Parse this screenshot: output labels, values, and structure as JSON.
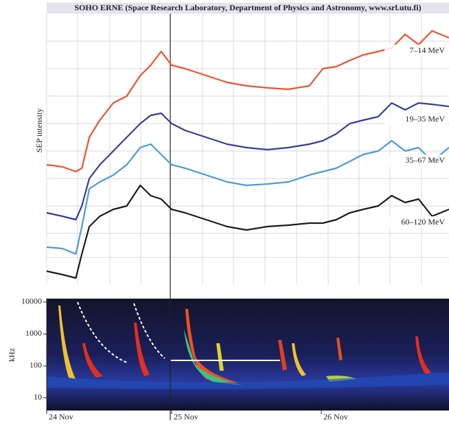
{
  "chart_data": [
    {
      "type": "line",
      "title": "SOHO ERNE (Space Research Laboratory, Department of Physics and Astronomy, www.srl.utu.fi)",
      "ylabel": "SEP intensity",
      "xlim": [
        0.165,
        2.853
      ],
      "ylim": [
        0,
        395
      ],
      "x": [
        0.165,
        0.27,
        0.36,
        0.4,
        0.45,
        0.52,
        0.61,
        0.7,
        0.79,
        0.86,
        0.93,
        1.0,
        1.09,
        1.23,
        1.37,
        1.5,
        1.64,
        1.78,
        1.92,
        2.01,
        2.1,
        2.19,
        2.28,
        2.38,
        2.47,
        2.56,
        2.65,
        2.74,
        2.853
      ],
      "series": [
        {
          "name": "7–14 MeV",
          "color": "#f0502a",
          "values": [
            175,
            172,
            165,
            170,
            215,
            240,
            265,
            275,
            305,
            320,
            340,
            320,
            315,
            305,
            295,
            290,
            287,
            285,
            290,
            315,
            318,
            327,
            335,
            340,
            345,
            365,
            350,
            370,
            360
          ]
        },
        {
          "name": "19–35 MeV",
          "color": "#3a3a9a",
          "values": [
            105,
            100,
            95,
            115,
            155,
            175,
            195,
            215,
            235,
            247,
            250,
            235,
            225,
            215,
            205,
            200,
            197,
            200,
            205,
            210,
            220,
            235,
            240,
            245,
            265,
            255,
            265,
            263,
            260
          ]
        },
        {
          "name": "35–67 MeV",
          "color": "#4a9ad6",
          "values": [
            55,
            53,
            45,
            85,
            140,
            150,
            160,
            175,
            200,
            205,
            190,
            175,
            170,
            160,
            150,
            145,
            147,
            150,
            160,
            165,
            170,
            180,
            190,
            195,
            210,
            195,
            200,
            180,
            200
          ]
        },
        {
          "name": "60–120 MeV",
          "color": "#1a1a1a",
          "values": [
            20,
            15,
            10,
            45,
            85,
            100,
            110,
            115,
            145,
            130,
            125,
            110,
            105,
            95,
            85,
            80,
            85,
            87,
            90,
            90,
            95,
            105,
            110,
            115,
            130,
            120,
            125,
            100,
            110
          ]
        }
      ]
    },
    {
      "type": "spectrogram",
      "ylabel": "kHz",
      "log_scale": true,
      "xlim": [
        0.165,
        2.853
      ],
      "xticks": [
        {
          "value": 0.165,
          "label": "24 Nov"
        },
        {
          "value": 1,
          "label": "25 Nov"
        },
        {
          "value": 2,
          "label": "26 Nov"
        }
      ],
      "ylim": [
        4,
        12800
      ],
      "yticks": [
        10,
        100,
        1000,
        10000
      ]
    }
  ]
}
